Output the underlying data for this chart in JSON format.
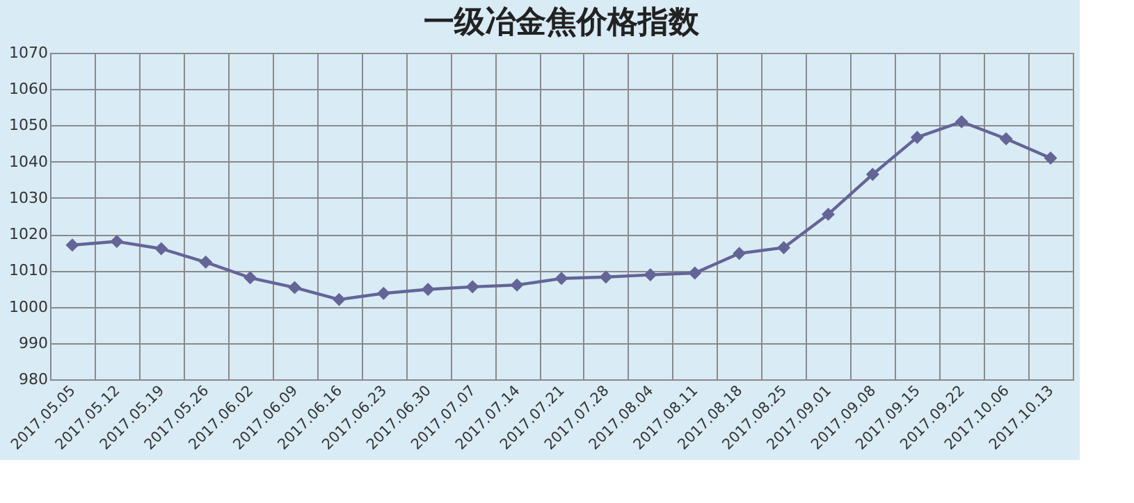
{
  "chart_data": {
    "type": "line",
    "title": "一级冶金焦价格指数",
    "categories": [
      "2017.05.05",
      "2017.05.12",
      "2017.05.19",
      "2017.05.26",
      "2017.06.02",
      "2017.06.09",
      "2017.06.16",
      "2017.06.23",
      "2017.06.30",
      "2017.07.07",
      "2017.07.14",
      "2017.07.21",
      "2017.07.28",
      "2017.08.04",
      "2017.08.11",
      "2017.08.18",
      "2017.08.25",
      "2017.09.01",
      "2017.09.08",
      "2017.09.15",
      "2017.09.22",
      "2017.10.06",
      "2017.10.13"
    ],
    "series": [
      {
        "color": "#646497",
        "values": [
          1017,
          1018,
          1016,
          1012.3,
          1008,
          1005.3,
          1002,
          1003.7,
          1004.8,
          1005.5,
          1006,
          1007.8,
          1008.2,
          1008.8,
          1009.3,
          1014.7,
          1016.3,
          1025.5,
          1036.5,
          1046.7,
          1051,
          1046.3,
          1041
        ]
      }
    ],
    "ylim": [
      980,
      1070
    ],
    "yticks": [
      980,
      990,
      1000,
      1010,
      1020,
      1030,
      1040,
      1050,
      1060,
      1070
    ],
    "grid": true,
    "marker": "diamond",
    "line_style": "solid"
  }
}
